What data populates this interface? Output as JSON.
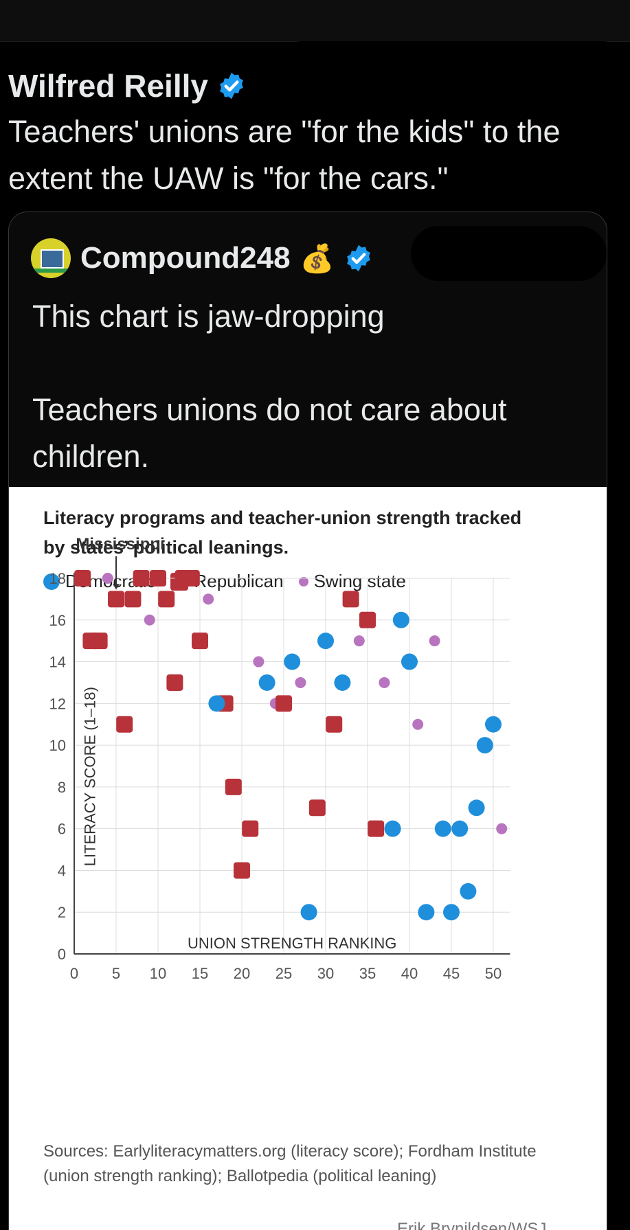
{
  "post": {
    "author": "Wilfred Reilly",
    "text": "Teachers' unions are \"for the kids\" to the extent the UAW is \"for the cars.\""
  },
  "quote": {
    "author": "Compound248",
    "author_emoji": "💰",
    "text": "This chart is jaw-dropping\n\nTeachers unions do not care about children."
  },
  "colors": {
    "democratic": "#1f8fdc",
    "republican": "#b8323a",
    "swing": "#b874bf",
    "verified": "#1d9bf0"
  },
  "chart_data": {
    "type": "scatter",
    "title": "Literacy programs and teacher-union strength tracked by states’ political leanings.",
    "xlabel": "UNION STRENGTH RANKING",
    "ylabel": "LITERACY SCORE (1–18)",
    "xlim": [
      0,
      52
    ],
    "ylim": [
      0,
      18
    ],
    "xticks": [
      0,
      5,
      10,
      15,
      20,
      25,
      30,
      35,
      40,
      45,
      50
    ],
    "yticks": [
      0,
      2,
      4,
      6,
      8,
      10,
      12,
      14,
      16,
      18
    ],
    "grid": true,
    "legend": [
      "Democratic",
      "Republican",
      "Swing state"
    ],
    "annotation": {
      "text": "Mississippi",
      "x": 5,
      "y": 17
    },
    "series": [
      {
        "name": "Democratic",
        "points": [
          [
            17,
            12
          ],
          [
            23,
            13
          ],
          [
            26,
            14
          ],
          [
            28,
            2
          ],
          [
            30,
            15
          ],
          [
            32,
            13
          ],
          [
            38,
            6
          ],
          [
            39,
            16
          ],
          [
            40,
            14
          ],
          [
            42,
            2
          ],
          [
            44,
            6
          ],
          [
            45,
            2
          ],
          [
            46,
            6
          ],
          [
            47,
            3
          ],
          [
            48,
            7
          ],
          [
            49,
            10
          ],
          [
            50,
            11
          ]
        ]
      },
      {
        "name": "Republican",
        "points": [
          [
            1,
            18
          ],
          [
            2,
            15
          ],
          [
            3,
            15
          ],
          [
            5,
            17
          ],
          [
            6,
            11
          ],
          [
            7,
            17
          ],
          [
            8,
            18
          ],
          [
            10,
            18
          ],
          [
            11,
            17
          ],
          [
            12,
            13
          ],
          [
            13,
            18
          ],
          [
            14,
            18
          ],
          [
            15,
            15
          ],
          [
            18,
            12
          ],
          [
            19,
            8
          ],
          [
            20,
            4
          ],
          [
            21,
            6
          ],
          [
            25,
            12
          ],
          [
            29,
            7
          ],
          [
            31,
            11
          ],
          [
            33,
            17
          ],
          [
            35,
            16
          ],
          [
            36,
            6
          ]
        ]
      },
      {
        "name": "Swing state",
        "points": [
          [
            4,
            18
          ],
          [
            9,
            16
          ],
          [
            16,
            17
          ],
          [
            22,
            14
          ],
          [
            24,
            12
          ],
          [
            27,
            13
          ],
          [
            34,
            15
          ],
          [
            37,
            13
          ],
          [
            41,
            11
          ],
          [
            43,
            15
          ],
          [
            51,
            6
          ]
        ]
      }
    ]
  },
  "sources": "Sources: Earlyliteracymatters.org (literacy score); Fordham Institute (union strength ranking); Ballotpedia (political leaning)",
  "credit": "Erik Brynildsen/WSJ"
}
